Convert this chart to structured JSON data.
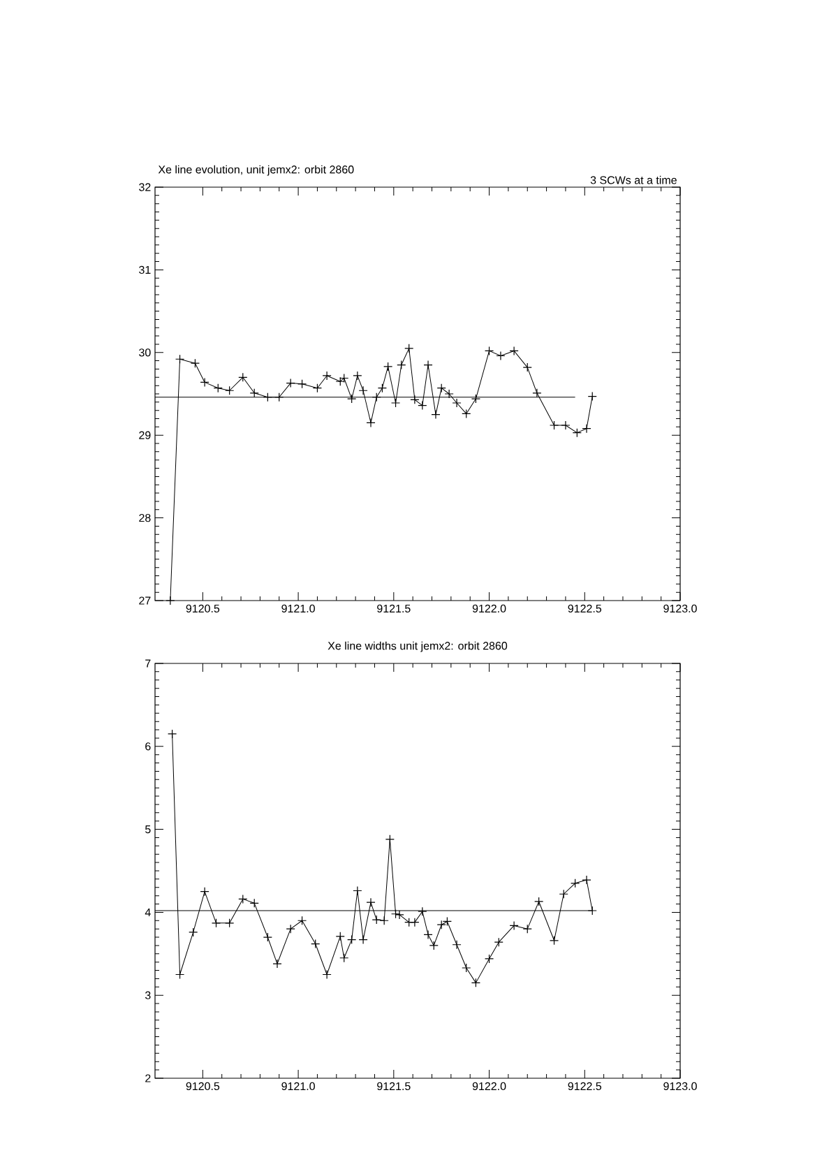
{
  "chart_data": [
    {
      "type": "line",
      "title": "Xe line evolution, unit jemx2: orbit 2860",
      "subtitle": "3 SCWs at a time",
      "xlim": [
        9120.25,
        9123.0
      ],
      "xticks": [
        9120.5,
        {
          "value": 9121.0,
          "label": "9121.0"
        },
        9121.5,
        {
          "value": 9122.0,
          "label": "9122.0"
        },
        9122.5,
        {
          "value": 9123.0,
          "label": "9123.0"
        }
      ],
      "ylim": [
        27,
        32
      ],
      "yticks": [
        27,
        28,
        29,
        30,
        31,
        32
      ],
      "series": [
        {
          "color": "#000000",
          "marker": "cross",
          "x": [
            9120.33,
            9120.38,
            9120.46,
            9120.51,
            9120.58,
            9120.64,
            9120.71,
            9120.77,
            9120.84,
            9120.9,
            9120.96,
            9121.02,
            9121.1,
            9121.15,
            9121.22,
            9121.24,
            9121.28,
            9121.31,
            9121.34,
            9121.38,
            9121.41,
            9121.44,
            9121.47,
            9121.51,
            9121.54,
            9121.58,
            9121.61,
            9121.65,
            9121.68,
            9121.72,
            9121.75,
            9121.79,
            9121.83,
            9121.88,
            9121.93,
            9122.0,
            9122.06,
            9122.13,
            9122.2,
            9122.25,
            9122.34,
            9122.4,
            9122.46,
            9122.51,
            9122.54
          ],
          "values": [
            27.0,
            29.92,
            29.87,
            29.64,
            29.57,
            29.54,
            29.7,
            29.51,
            29.46,
            29.46,
            29.63,
            29.62,
            29.57,
            29.72,
            29.65,
            29.69,
            29.44,
            29.72,
            29.54,
            29.15,
            29.46,
            29.57,
            29.83,
            29.39,
            29.85,
            30.05,
            29.43,
            29.36,
            29.85,
            29.25,
            29.57,
            29.5,
            29.39,
            29.26,
            29.44,
            30.02,
            29.96,
            30.02,
            29.82,
            29.51,
            29.12,
            29.12,
            29.03,
            29.08,
            29.47
          ]
        },
        {
          "color": "#000000",
          "marker": "none",
          "x": [
            9120.25,
            9122.45
          ],
          "values": [
            29.46,
            29.46
          ]
        }
      ]
    },
    {
      "type": "line",
      "title": "Xe line widths unit jemx2: orbit 2860",
      "xlim": [
        9120.25,
        9123.0
      ],
      "xticks": [
        9120.5,
        {
          "value": 9121.0,
          "label": "9121.0"
        },
        9121.5,
        {
          "value": 9122.0,
          "label": "9122.0"
        },
        9122.5,
        {
          "value": 9123.0,
          "label": "9123.0"
        }
      ],
      "ylim": [
        2,
        7
      ],
      "yticks": [
        2,
        3,
        4,
        5,
        6,
        7
      ],
      "series": [
        {
          "color": "#000000",
          "marker": "cross",
          "x": [
            9120.34,
            9120.38,
            9120.45,
            9120.51,
            9120.57,
            9120.64,
            9120.71,
            9120.77,
            9120.84,
            9120.89,
            9120.96,
            9121.02,
            9121.09,
            9121.15,
            9121.22,
            9121.24,
            9121.28,
            9121.31,
            9121.34,
            9121.38,
            9121.41,
            9121.45,
            9121.48,
            9121.51,
            9121.53,
            9121.58,
            9121.61,
            9121.65,
            9121.68,
            9121.71,
            9121.75,
            9121.78,
            9121.83,
            9121.88,
            9121.93,
            9122.0,
            9122.05,
            9122.13,
            9122.2,
            9122.26,
            9122.34,
            9122.39,
            9122.45,
            9122.51,
            9122.54
          ],
          "values": [
            6.15,
            3.25,
            3.76,
            4.25,
            3.87,
            3.87,
            4.16,
            4.11,
            3.7,
            3.38,
            3.8,
            3.9,
            3.62,
            3.25,
            3.71,
            3.45,
            3.67,
            4.26,
            3.67,
            4.12,
            3.91,
            3.9,
            4.88,
            3.98,
            3.97,
            3.88,
            3.88,
            4.01,
            3.73,
            3.6,
            3.85,
            3.89,
            3.61,
            3.33,
            3.15,
            3.44,
            3.64,
            3.84,
            3.8,
            4.13,
            3.66,
            4.22,
            4.35,
            4.39,
            4.02
          ]
        },
        {
          "color": "#000000",
          "marker": "none",
          "x": [
            9120.25,
            9122.54
          ],
          "values": [
            4.02,
            4.02
          ]
        }
      ]
    }
  ]
}
